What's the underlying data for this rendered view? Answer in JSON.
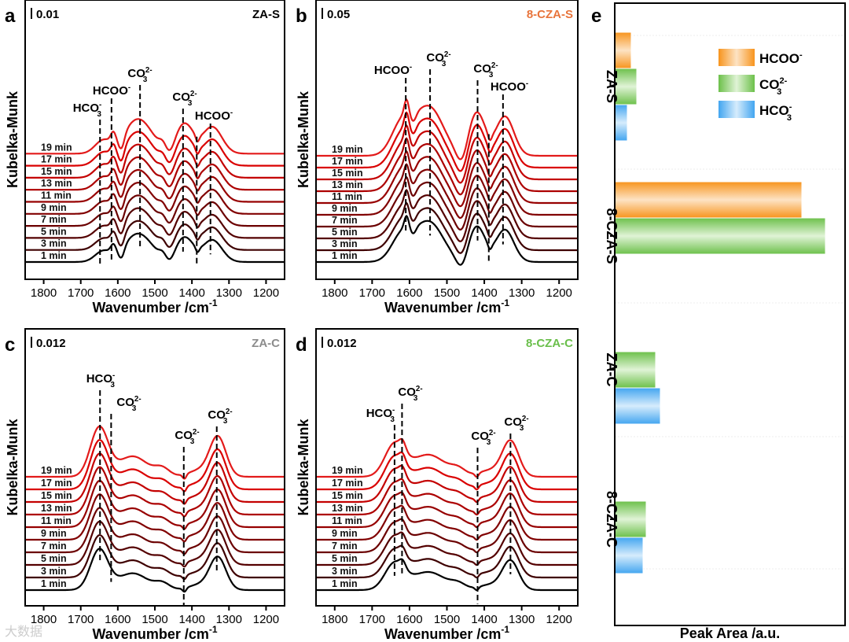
{
  "chart_data": [
    {
      "type": "line",
      "panel": "a",
      "title": "ZA-S",
      "title_color": "#000000",
      "scale_bar": "0.01",
      "xlabel": "Wavenumber /cm",
      "xlabel_sup": "-1",
      "ylabel": "Kubelka-Munk",
      "xlim": [
        1850,
        1150
      ],
      "xticks": [
        1800,
        1700,
        1600,
        1500,
        1400,
        1300,
        1200
      ],
      "series": [
        "1 min",
        "3 min",
        "5 min",
        "7 min",
        "9 min",
        "11 min",
        "13 min",
        "15 min",
        "17 min",
        "19 min"
      ],
      "peaks": [
        [
          1640,
          22,
          16
        ],
        [
          1612,
          7,
          12
        ],
        [
          1545,
          38,
          44
        ],
        [
          1478,
          10,
          8
        ],
        [
          1420,
          24,
          38
        ],
        [
          1345,
          26,
          34
        ],
        [
          1590,
          8,
          -16
        ],
        [
          1460,
          12,
          -10
        ],
        [
          1385,
          5,
          -8
        ]
      ],
      "markers": [
        {
          "wn": 1648,
          "label": {
            "base": "HCO",
            "sub": "3",
            "sup": "-"
          }
        },
        {
          "wn": 1617,
          "label": {
            "base": "HCOO",
            "sub": "",
            "sup": "-"
          }
        },
        {
          "wn": 1540,
          "label": {
            "base": "CO",
            "sub": "3",
            "sup": "2-"
          }
        },
        {
          "wn": 1424,
          "label": {
            "base": "CO",
            "sub": "3",
            "sup": "2-"
          }
        },
        {
          "wn": 1387,
          "label": null
        },
        {
          "wn": 1350,
          "label": {
            "base": "HCOO",
            "sub": "",
            "sup": "-"
          }
        }
      ]
    },
    {
      "type": "line",
      "panel": "b",
      "title": "8-CZA-S",
      "title_color": "#e8743b",
      "scale_bar": "0.05",
      "xlabel": "Wavenumber /cm",
      "xlabel_sup": "-1",
      "ylabel": "Kubelka-Munk",
      "xlim": [
        1850,
        1150
      ],
      "xticks": [
        1800,
        1700,
        1600,
        1500,
        1400,
        1300,
        1200
      ],
      "series": [
        "1 min",
        "3 min",
        "5 min",
        "7 min",
        "9 min",
        "11 min",
        "13 min",
        "15 min",
        "17 min",
        "19 min"
      ],
      "peaks": [
        [
          1620,
          28,
          40
        ],
        [
          1608,
          6,
          18
        ],
        [
          1548,
          38,
          62
        ],
        [
          1420,
          22,
          55
        ],
        [
          1345,
          24,
          50
        ],
        [
          1590,
          8,
          -12
        ],
        [
          1460,
          14,
          -18
        ],
        [
          1385,
          5,
          -8
        ]
      ],
      "markers": [
        {
          "wn": 1610,
          "label": {
            "base": "HCOO",
            "sub": "",
            "sup": "-"
          }
        },
        {
          "wn": 1545,
          "label": {
            "base": "CO",
            "sub": "3",
            "sup": "2-"
          }
        },
        {
          "wn": 1418,
          "label": {
            "base": "CO",
            "sub": "3",
            "sup": "2-"
          }
        },
        {
          "wn": 1388,
          "label": null
        },
        {
          "wn": 1350,
          "label": {
            "base": "HCOO",
            "sub": "",
            "sup": "-"
          }
        }
      ]
    },
    {
      "type": "line",
      "panel": "c",
      "title": "ZA-C",
      "title_color": "#8c8c8c",
      "scale_bar": "0.012",
      "xlabel": "Wavenumber /cm",
      "xlabel_sup": "-1",
      "ylabel": "Kubelka-Munk",
      "xlim": [
        1850,
        1150
      ],
      "xticks": [
        1800,
        1700,
        1600,
        1500,
        1400,
        1300,
        1200
      ],
      "series": [
        "1 min",
        "3 min",
        "5 min",
        "7 min",
        "9 min",
        "11 min",
        "13 min",
        "15 min",
        "17 min",
        "19 min"
      ],
      "peaks": [
        [
          1650,
          24,
          62
        ],
        [
          1560,
          40,
          26
        ],
        [
          1480,
          20,
          10
        ],
        [
          1420,
          5,
          -6
        ],
        [
          1330,
          22,
          50
        ],
        [
          1380,
          30,
          8
        ]
      ],
      "markers": [
        {
          "wn": 1648,
          "label": {
            "base": "HCO",
            "sub": "3",
            "sup": "-"
          }
        },
        {
          "wn": 1618,
          "label": {
            "base": "CO",
            "sub": "3",
            "sup": "2-"
          }
        },
        {
          "wn": 1422,
          "label": {
            "base": "CO",
            "sub": "3",
            "sup": "2-"
          }
        },
        {
          "wn": 1333,
          "label": {
            "base": "CO",
            "sub": "3",
            "sup": "2-"
          }
        }
      ]
    },
    {
      "type": "line",
      "panel": "d",
      "title": "8-CZA-C",
      "title_color": "#6abf4b",
      "scale_bar": "0.012",
      "xlabel": "Wavenumber /cm",
      "xlabel_sup": "-1",
      "ylabel": "Kubelka-Munk",
      "xlim": [
        1850,
        1150
      ],
      "xticks": [
        1800,
        1700,
        1600,
        1500,
        1400,
        1300,
        1200
      ],
      "series": [
        "1 min",
        "3 min",
        "5 min",
        "7 min",
        "9 min",
        "11 min",
        "13 min",
        "15 min",
        "17 min",
        "19 min"
      ],
      "peaks": [
        [
          1640,
          26,
          40
        ],
        [
          1618,
          8,
          10
        ],
        [
          1550,
          45,
          28
        ],
        [
          1470,
          20,
          8
        ],
        [
          1420,
          5,
          -5
        ],
        [
          1330,
          22,
          45
        ],
        [
          1385,
          30,
          8
        ]
      ],
      "markers": [
        {
          "wn": 1640,
          "label": {
            "base": "HCO",
            "sub": "3",
            "sup": "-"
          }
        },
        {
          "wn": 1620,
          "label": {
            "base": "CO",
            "sub": "3",
            "sup": "2-"
          }
        },
        {
          "wn": 1418,
          "label": {
            "base": "CO",
            "sub": "3",
            "sup": "2-"
          }
        },
        {
          "wn": 1330,
          "label": {
            "base": "CO",
            "sub": "3",
            "sup": "2-"
          }
        }
      ]
    },
    {
      "type": "bar",
      "panel": "e",
      "orientation": "horizontal",
      "xlabel": "Peak Area /a.u.",
      "categories": [
        "ZA-S",
        "8-CZA-S",
        "ZA-C",
        "8-CZA-C"
      ],
      "series": [
        {
          "name": {
            "base": "HCOO",
            "sub": "",
            "sup": "-"
          },
          "color": "#f7941d",
          "values": [
            21,
            238,
            0,
            0
          ]
        },
        {
          "name": {
            "base": "CO",
            "sub": "3",
            "sup": "2-"
          },
          "color": "#6cc04a",
          "values": [
            28,
            268,
            52,
            40
          ]
        },
        {
          "name": {
            "base": "HCO",
            "sub": "3",
            "sup": "-"
          },
          "color": "#42a5f0",
          "values": [
            16,
            0,
            58,
            36
          ]
        }
      ],
      "xlim": [
        0,
        293
      ],
      "legend": "top-right"
    }
  ],
  "panel_letters": [
    "a",
    "b",
    "c",
    "d",
    "e"
  ],
  "watermark": "大数据"
}
